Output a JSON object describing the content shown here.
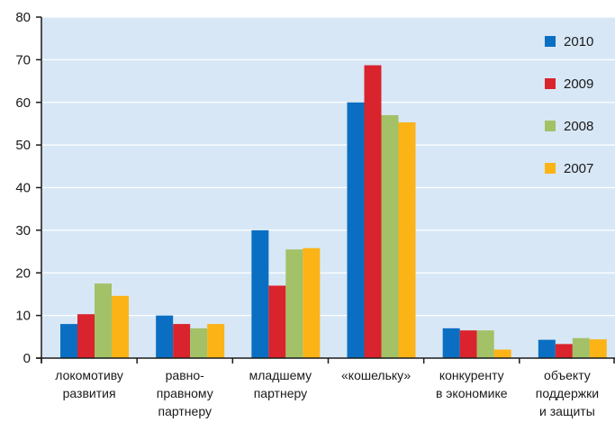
{
  "chart_data": {
    "type": "bar",
    "categories": [
      [
        "локомотиву",
        "развития"
      ],
      [
        "равно-",
        "правному",
        "партнеру"
      ],
      [
        "младшему",
        "партнеру"
      ],
      [
        "«кошельку»"
      ],
      [
        "конкуренту",
        "в экономике"
      ],
      [
        "объекту",
        "поддержки",
        "и защиты"
      ]
    ],
    "series": [
      {
        "name": "2010",
        "color": "#0a6fc2",
        "values": [
          8,
          10,
          30,
          60,
          7,
          4.3
        ]
      },
      {
        "name": "2009",
        "color": "#d9232d",
        "values": [
          10.3,
          8,
          17,
          68.7,
          6.5,
          3.3
        ]
      },
      {
        "name": "2008",
        "color": "#a3c167",
        "values": [
          17.5,
          7,
          25.5,
          57,
          6.5,
          4.7
        ]
      },
      {
        "name": "2007",
        "color": "#fcb316",
        "values": [
          14.6,
          8,
          25.8,
          55.3,
          2,
          4.4
        ]
      }
    ],
    "ylim": [
      0,
      80
    ],
    "yticks": [
      0,
      10,
      20,
      30,
      40,
      50,
      60,
      70,
      80
    ],
    "grid": true,
    "legend": "top-right",
    "background": "#d7e7f6",
    "gridline_color": "#ffffff",
    "axis_color": "#1a1a1a"
  }
}
